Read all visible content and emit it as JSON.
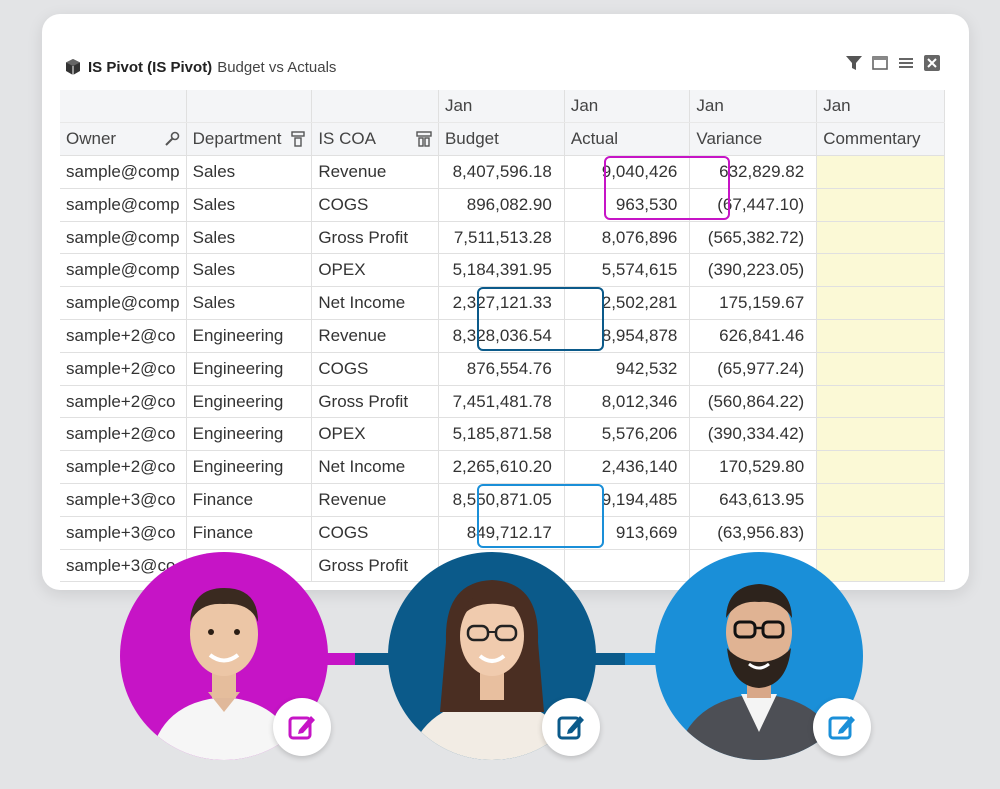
{
  "window": {
    "title_bold": "IS Pivot (IS Pivot)",
    "title_sub": "Budget vs Actuals"
  },
  "toolbar_icons": [
    "filter-icon",
    "window-icon",
    "menu-icon",
    "close-icon"
  ],
  "table": {
    "period_headers": [
      "Jan",
      "Jan",
      "Jan",
      "Jan"
    ],
    "columns": [
      "Owner",
      "Department",
      "IS COA",
      "Budget",
      "Actual",
      "Variance",
      "Commentary"
    ],
    "rows": [
      [
        "sample@comp",
        "Sales",
        "Revenue",
        "8,407,596.18",
        "9,040,426",
        "632,829.82",
        ""
      ],
      [
        "sample@comp",
        "Sales",
        "COGS",
        "896,082.90",
        "963,530",
        "(67,447.10)",
        ""
      ],
      [
        "sample@comp",
        "Sales",
        "Gross Profit",
        "7,511,513.28",
        "8,076,896",
        "(565,382.72)",
        ""
      ],
      [
        "sample@comp",
        "Sales",
        "OPEX",
        "5,184,391.95",
        "5,574,615",
        "(390,223.05)",
        ""
      ],
      [
        "sample@comp",
        "Sales",
        "Net Income",
        "2,327,121.33",
        "2,502,281",
        "175,159.67",
        ""
      ],
      [
        "sample+2@co",
        "Engineering",
        "Revenue",
        "8,328,036.54",
        "8,954,878",
        "626,841.46",
        ""
      ],
      [
        "sample+2@co",
        "Engineering",
        "COGS",
        "876,554.76",
        "942,532",
        "(65,977.24)",
        ""
      ],
      [
        "sample+2@co",
        "Engineering",
        "Gross Profit",
        "7,451,481.78",
        "8,012,346",
        "(560,864.22)",
        ""
      ],
      [
        "sample+2@co",
        "Engineering",
        "OPEX",
        "5,185,871.58",
        "5,576,206",
        "(390,334.42)",
        ""
      ],
      [
        "sample+2@co",
        "Engineering",
        "Net Income",
        "2,265,610.20",
        "2,436,140",
        "170,529.80",
        ""
      ],
      [
        "sample+3@co",
        "Finance",
        "Revenue",
        "8,550,871.05",
        "9,194,485",
        "643,613.95",
        ""
      ],
      [
        "sample+3@co",
        "Finance",
        "COGS",
        "849,712.17",
        "913,669",
        "(63,956.83)",
        ""
      ],
      [
        "sample+3@co",
        "",
        "Gross Profit",
        "",
        "",
        "",
        ""
      ]
    ]
  },
  "colors": {
    "magenta": "#c614c6",
    "navy": "#0b5a8a",
    "blue": "#1a8fd8",
    "commentary_bg": "#fbf9d6"
  },
  "collaborators": [
    {
      "name": "avatar-man-1",
      "color": "#c614c6"
    },
    {
      "name": "avatar-woman",
      "color": "#0b5a8a"
    },
    {
      "name": "avatar-man-2",
      "color": "#1a8fd8"
    }
  ]
}
